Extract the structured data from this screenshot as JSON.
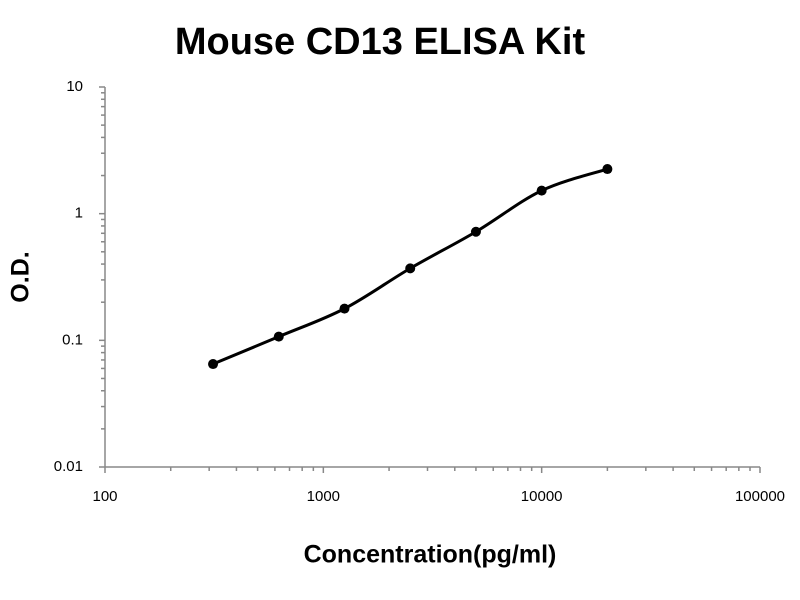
{
  "chart_data": {
    "type": "scatter",
    "title": "Mouse CD13 ELISA Kit",
    "x_label": "Concentration(pg/ml)",
    "y_label": "O.D.",
    "x": [
      312.5,
      625,
      1250,
      2500,
      5000,
      10000,
      20000
    ],
    "values": [
      0.065,
      0.107,
      0.178,
      0.37,
      0.72,
      1.52,
      2.25
    ],
    "color": "#000000",
    "line": true,
    "log_x": true,
    "log_y": true,
    "xlim": [
      100,
      100000
    ],
    "xticks": [
      100,
      1000,
      10000,
      100000
    ],
    "ylim": [
      0.01,
      10
    ],
    "yticks": [
      0.01,
      0.1,
      1,
      10
    ]
  }
}
